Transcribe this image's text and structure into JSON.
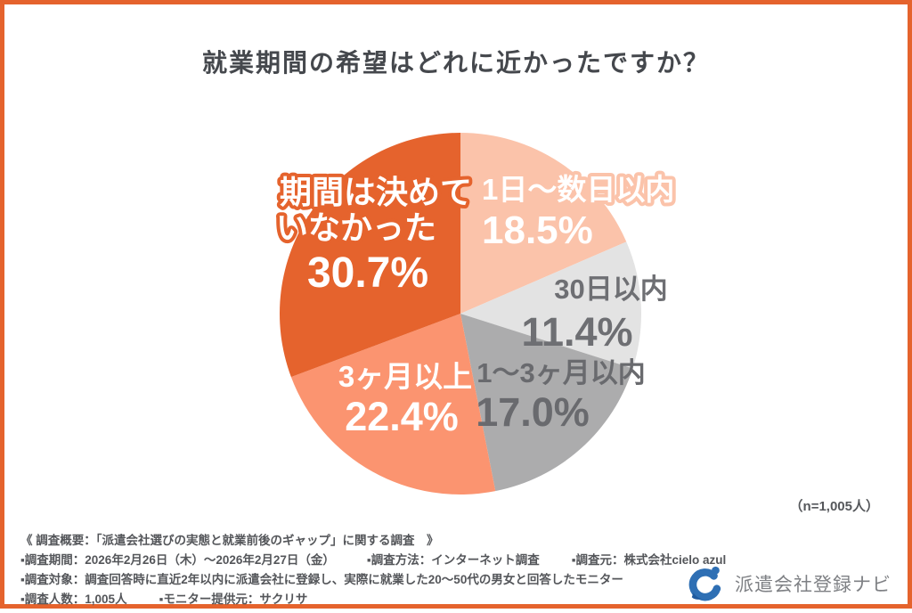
{
  "title": "就業期間の希望はどれに近かったですか？",
  "sample_note": "（n=1,005人）",
  "chart_data": {
    "type": "pie",
    "title": "就業期間の希望はどれに近かったですか？",
    "start_angle_deg": -90,
    "direction": "clockwise",
    "total_label": "（n=1,005人）",
    "segments": [
      {
        "label": "1日〜数日以内",
        "value": 18.5,
        "display": "18.5%",
        "color": "#FBC3AA",
        "label_color": "#FFFFFF"
      },
      {
        "label": "30日以内",
        "value": 11.4,
        "display": "11.4%",
        "color": "#E3E3E3",
        "label_color": "#6E6F73"
      },
      {
        "label": "1〜3ヶ月以内",
        "value": 17.0,
        "display": "17.0%",
        "color": "#ACACAD",
        "label_color": "#696A6E"
      },
      {
        "label": "3ヶ月以上",
        "value": 22.4,
        "display": "22.4%",
        "color": "#FB9470",
        "label_color": "#FFFFFF"
      },
      {
        "label": "期間は決めていなかった",
        "value": 30.7,
        "display": "30.7%",
        "color": "#E5632D",
        "label_color": "#FFFFFF"
      }
    ]
  },
  "pie_labels": {
    "seg4_line1": "期間は決めて",
    "seg4_line2": "いなかった"
  },
  "footer": {
    "line1": "《 調査概要：「派遣会社選びの実態と就業前後のギャップ」に関する調査　》",
    "line2_items": [
      "▪調査期間：2026年2月26日（木）～2026年2月27日（金）",
      "▪調査方法：インターネット調査",
      "▪調査元：株式会社cielo azul"
    ],
    "line3": "▪調査対象：調査回答時に直近2年以内に派遣会社に登録し、実際に就業した20〜50代の男女と回答したモニター",
    "line4_items": [
      "▪調査人数：1,005人",
      "▪モニター提供元：サクリサ"
    ]
  },
  "logo": {
    "text": "派遣会社登録ナビ",
    "icon_color": "#2E6FB4",
    "frame_color": "#E5632D"
  }
}
